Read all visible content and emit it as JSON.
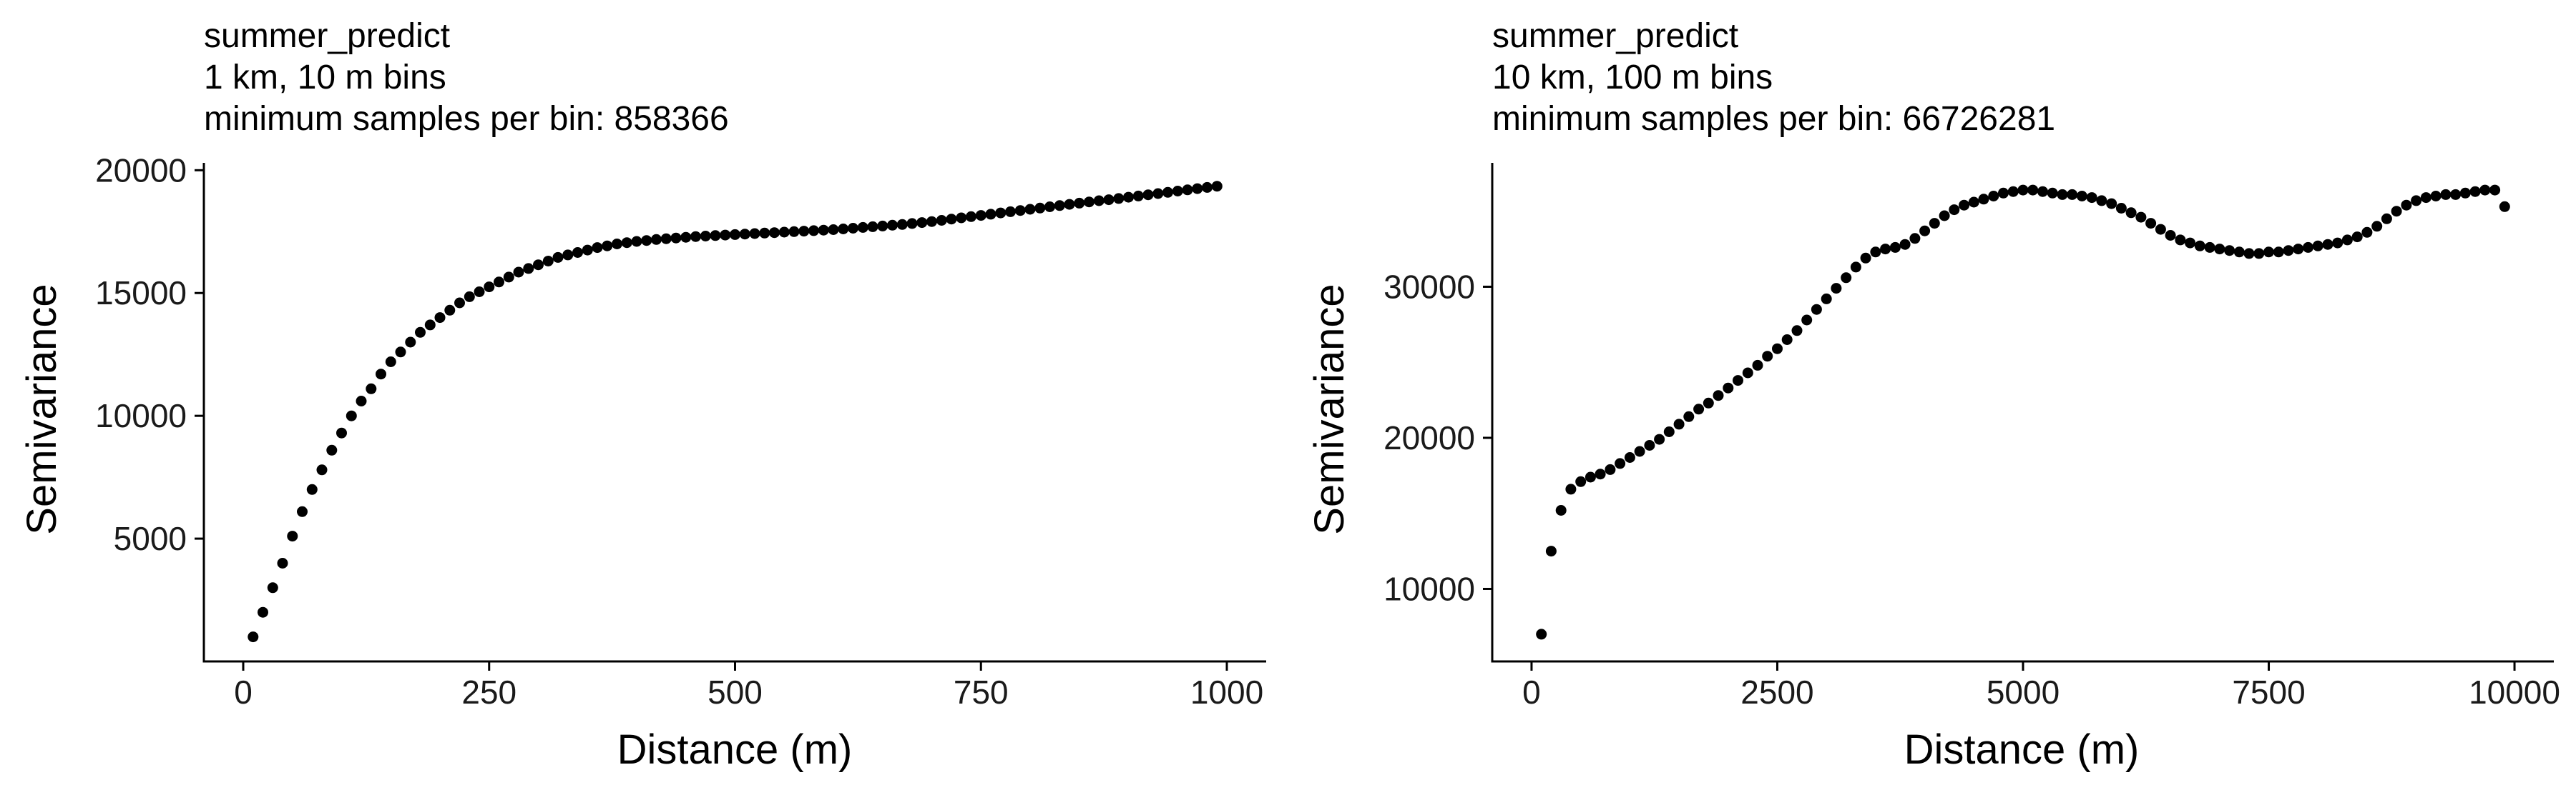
{
  "chart_data": [
    {
      "type": "scatter",
      "title": [
        "summer_predict",
        "1 km, 10 m bins",
        "minimum samples per bin: 858366"
      ],
      "xlabel": "Distance (m)",
      "ylabel": "Semivariance",
      "xlim": [
        -40,
        1040
      ],
      "ylim": [
        0,
        20300
      ],
      "xticks": [
        0,
        250,
        500,
        750,
        1000
      ],
      "xtick_labels": [
        "0",
        "250",
        "500",
        "750",
        "1000"
      ],
      "yticks": [
        5000,
        10000,
        15000,
        20000
      ],
      "ytick_labels": [
        "5000",
        "10000",
        "15000",
        "20000"
      ],
      "grid": false,
      "legend": "none",
      "point_color": "#000000",
      "x": [
        10,
        20,
        30,
        40,
        50,
        60,
        70,
        80,
        90,
        100,
        110,
        120,
        130,
        140,
        150,
        160,
        170,
        180,
        190,
        200,
        210,
        220,
        230,
        240,
        250,
        260,
        270,
        280,
        290,
        300,
        310,
        320,
        330,
        340,
        350,
        360,
        370,
        380,
        390,
        400,
        410,
        420,
        430,
        440,
        450,
        460,
        470,
        480,
        490,
        500,
        510,
        520,
        530,
        540,
        550,
        560,
        570,
        580,
        590,
        600,
        610,
        620,
        630,
        640,
        650,
        660,
        670,
        680,
        690,
        700,
        710,
        720,
        730,
        740,
        750,
        760,
        770,
        780,
        790,
        800,
        810,
        820,
        830,
        840,
        850,
        860,
        870,
        880,
        890,
        900,
        910,
        920,
        930,
        940,
        950,
        960,
        970,
        980,
        990
      ],
      "y": [
        1000,
        2000,
        3000,
        4000,
        5100,
        6100,
        7000,
        7800,
        8600,
        9300,
        10000,
        10600,
        11100,
        11700,
        12200,
        12600,
        13000,
        13400,
        13700,
        14000,
        14300,
        14600,
        14850,
        15050,
        15250,
        15450,
        15650,
        15850,
        16000,
        16150,
        16300,
        16450,
        16550,
        16650,
        16750,
        16850,
        16920,
        17000,
        17050,
        17100,
        17140,
        17180,
        17210,
        17240,
        17270,
        17300,
        17320,
        17340,
        17360,
        17380,
        17400,
        17420,
        17440,
        17460,
        17480,
        17500,
        17520,
        17540,
        17560,
        17580,
        17610,
        17640,
        17670,
        17700,
        17730,
        17760,
        17790,
        17830,
        17870,
        17910,
        17960,
        18010,
        18060,
        18110,
        18160,
        18210,
        18260,
        18310,
        18360,
        18410,
        18460,
        18510,
        18560,
        18610,
        18660,
        18710,
        18760,
        18800,
        18850,
        18900,
        18950,
        19000,
        19050,
        19100,
        19150,
        19200,
        19250,
        19300,
        19350
      ]
    },
    {
      "type": "scatter",
      "title": [
        "summer_predict",
        "10 km, 100 m bins",
        "minimum samples per bin: 66726281"
      ],
      "xlabel": "Distance (m)",
      "ylabel": "Semivariance",
      "xlim": [
        -400,
        10400
      ],
      "ylim": [
        5200,
        38200
      ],
      "xticks": [
        0,
        2500,
        5000,
        7500,
        10000
      ],
      "xtick_labels": [
        "0",
        "2500",
        "5000",
        "7500",
        "10000"
      ],
      "yticks": [
        10000,
        20000,
        30000
      ],
      "ytick_labels": [
        "10000",
        "20000",
        "30000"
      ],
      "grid": false,
      "legend": "none",
      "point_color": "#000000",
      "x": [
        100,
        200,
        300,
        400,
        500,
        600,
        700,
        800,
        900,
        1000,
        1100,
        1200,
        1300,
        1400,
        1500,
        1600,
        1700,
        1800,
        1900,
        2000,
        2100,
        2200,
        2300,
        2400,
        2500,
        2600,
        2700,
        2800,
        2900,
        3000,
        3100,
        3200,
        3300,
        3400,
        3500,
        3600,
        3700,
        3800,
        3900,
        4000,
        4100,
        4200,
        4300,
        4400,
        4500,
        4600,
        4700,
        4800,
        4900,
        5000,
        5100,
        5200,
        5300,
        5400,
        5500,
        5600,
        5700,
        5800,
        5900,
        6000,
        6100,
        6200,
        6300,
        6400,
        6500,
        6600,
        6700,
        6800,
        6900,
        7000,
        7100,
        7200,
        7300,
        7400,
        7500,
        7600,
        7700,
        7800,
        7900,
        8000,
        8100,
        8200,
        8300,
        8400,
        8500,
        8600,
        8700,
        8800,
        8900,
        9000,
        9100,
        9200,
        9300,
        9400,
        9500,
        9600,
        9700,
        9800,
        9900
      ],
      "y": [
        7000,
        12500,
        15200,
        16600,
        17100,
        17400,
        17600,
        17900,
        18300,
        18700,
        19100,
        19500,
        19900,
        20400,
        20900,
        21400,
        21900,
        22300,
        22800,
        23300,
        23800,
        24300,
        24800,
        25400,
        25900,
        26500,
        27100,
        27800,
        28500,
        29200,
        29900,
        30600,
        31300,
        31900,
        32300,
        32500,
        32600,
        32800,
        33200,
        33700,
        34200,
        34700,
        35100,
        35400,
        35600,
        35800,
        36000,
        36200,
        36300,
        36400,
        36400,
        36300,
        36200,
        36100,
        36100,
        36000,
        35900,
        35700,
        35500,
        35200,
        34900,
        34600,
        34200,
        33800,
        33400,
        33100,
        32900,
        32700,
        32600,
        32500,
        32400,
        32300,
        32200,
        32200,
        32300,
        32300,
        32400,
        32500,
        32600,
        32700,
        32800,
        32900,
        33100,
        33300,
        33600,
        34000,
        34500,
        35000,
        35400,
        35700,
        35900,
        36000,
        36100,
        36100,
        36200,
        36300,
        36400,
        36400,
        35300
      ]
    }
  ]
}
